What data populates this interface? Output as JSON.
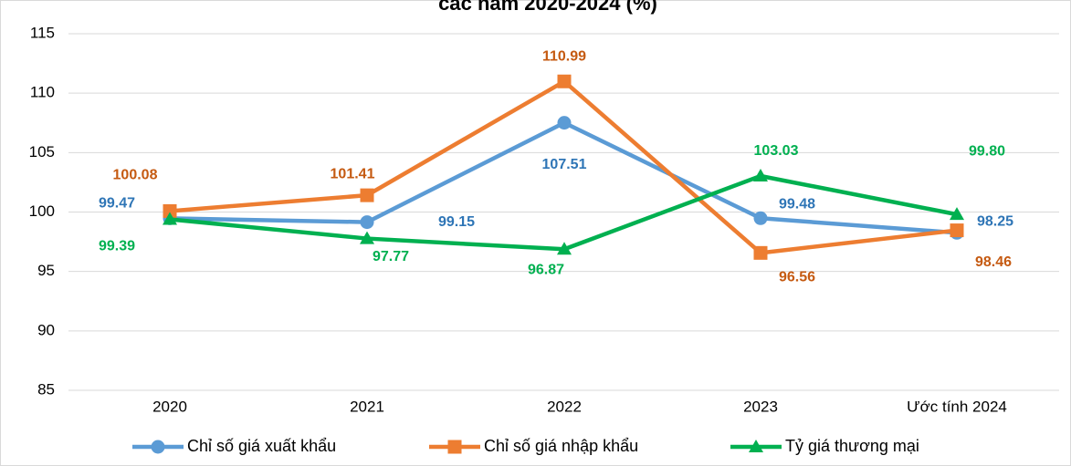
{
  "chart_data": {
    "type": "line",
    "title": "các năm 2020-2024 (%)",
    "categories": [
      "2020",
      "2021",
      "2022",
      "2023",
      "Ước tính 2024"
    ],
    "series": [
      {
        "name": "Chỉ số giá xuất khẩu",
        "color": "#5b9bd5",
        "marker": "circle",
        "values": [
          99.47,
          99.15,
          107.51,
          99.48,
          98.25
        ],
        "value_labels": [
          "99.47",
          "99.15",
          "107.51",
          "99.48",
          "98.25"
        ],
        "label_color": "#2e75b6"
      },
      {
        "name": "Chỉ số giá nhập khẩu",
        "color": "#ed7d31",
        "marker": "square",
        "values": [
          100.08,
          101.41,
          110.99,
          96.56,
          98.46
        ],
        "value_labels": [
          "100.08",
          "101.41",
          "110.99",
          "96.56",
          "98.46"
        ],
        "label_color": "#c55a11"
      },
      {
        "name": "Tỷ giá thương mại",
        "color": "#00b050",
        "marker": "triangle",
        "values": [
          99.39,
          97.77,
          96.87,
          103.03,
          99.8
        ],
        "value_labels": [
          "99.39",
          "97.77",
          "96.87",
          "103.03",
          "99.80"
        ],
        "label_color": "#00b050"
      }
    ],
    "ylim": [
      85,
      115
    ],
    "yticks": [
      85,
      90,
      95,
      100,
      105,
      110,
      115
    ],
    "grid": true,
    "legend": "bottom"
  }
}
